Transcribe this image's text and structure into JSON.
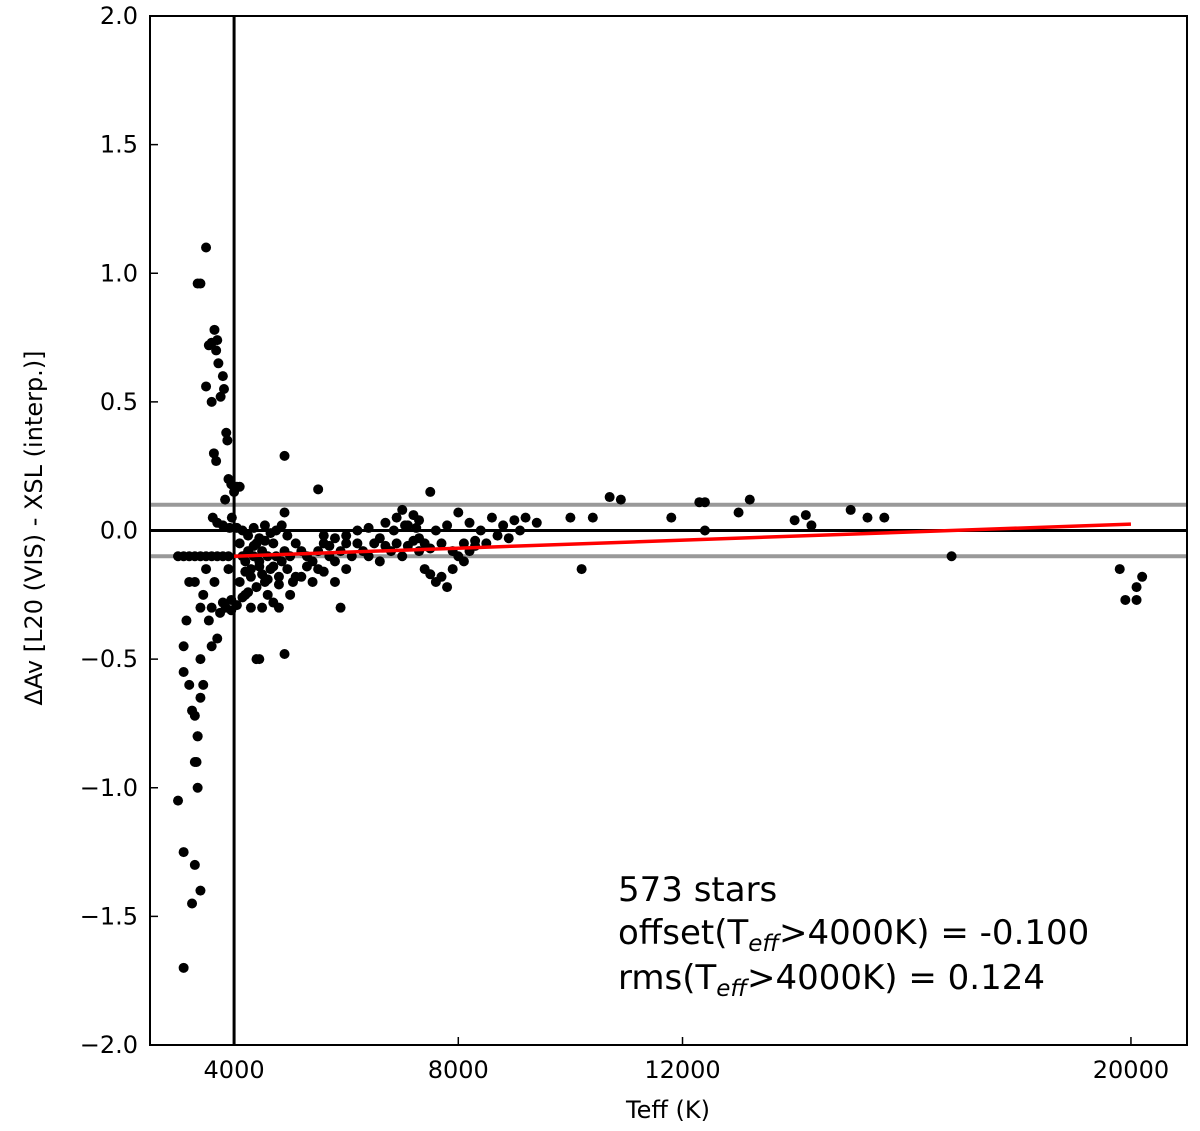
{
  "chart_data": {
    "type": "scatter",
    "xlabel": "Teff (K)",
    "ylabel": "ΔAv [L20 (VIS) - XSL (interp.)]",
    "xlim": [
      2500,
      21000
    ],
    "ylim": [
      -2.0,
      2.0
    ],
    "x_ticks": [
      4000,
      8000,
      12000,
      20000
    ],
    "x_tick_labels": [
      "4000",
      "8000",
      "12000",
      "20000"
    ],
    "y_ticks": [
      2.0,
      1.5,
      1.0,
      0.5,
      0.0,
      -0.5,
      -1.0,
      -1.5,
      -2.0
    ],
    "y_tick_labels": [
      "2.0",
      "1.5",
      "1.0",
      "0.5",
      "0.0",
      "−0.5",
      "−1.0",
      "−1.5",
      "−2.0"
    ],
    "reference_lines": {
      "vertical_x": 4000,
      "zero_y": 0.0,
      "gray_band_y": [
        0.1,
        -0.1
      ]
    },
    "fit_line": {
      "x": [
        4000,
        20000
      ],
      "y": [
        -0.1,
        0.025
      ],
      "color": "#ff0000"
    },
    "annotation": {
      "line1": "573 stars",
      "line2_prefix": "offset(T",
      "line2_sub": "eff",
      "line2_suffix": ">4000K)  = -0.100",
      "line3_prefix": "rms(T",
      "line3_sub": "eff",
      "line3_suffix": ">4000K) = 0.124"
    },
    "colors": {
      "points": "#000000",
      "fit": "#ff0000",
      "band": "#999999",
      "axes": "#000000"
    },
    "points": [
      [
        3500,
        1.1
      ],
      [
        3400,
        0.96
      ],
      [
        3350,
        0.96
      ],
      [
        3650,
        0.78
      ],
      [
        3700,
        0.74
      ],
      [
        3600,
        0.73
      ],
      [
        3550,
        0.72
      ],
      [
        3680,
        0.7
      ],
      [
        3720,
        0.65
      ],
      [
        3800,
        0.6
      ],
      [
        3820,
        0.55
      ],
      [
        3500,
        0.56
      ],
      [
        3760,
        0.52
      ],
      [
        3600,
        0.5
      ],
      [
        3860,
        0.38
      ],
      [
        3880,
        0.35
      ],
      [
        3640,
        0.3
      ],
      [
        3680,
        0.27
      ],
      [
        3900,
        0.2
      ],
      [
        3950,
        0.18
      ],
      [
        4000,
        0.15
      ],
      [
        3840,
        0.12
      ],
      [
        4050,
        0.17
      ],
      [
        4100,
        0.17
      ],
      [
        3960,
        0.05
      ],
      [
        3620,
        0.05
      ],
      [
        3700,
        0.03
      ],
      [
        3800,
        0.02
      ],
      [
        3920,
        0.01
      ],
      [
        4050,
        0.01
      ],
      [
        3000,
        -0.1
      ],
      [
        3100,
        -0.1
      ],
      [
        3200,
        -0.1
      ],
      [
        3300,
        -0.1
      ],
      [
        3400,
        -0.1
      ],
      [
        3500,
        -0.1
      ],
      [
        3600,
        -0.1
      ],
      [
        3700,
        -0.1
      ],
      [
        3800,
        -0.1
      ],
      [
        3900,
        -0.1
      ],
      [
        3200,
        -0.2
      ],
      [
        3300,
        -0.2
      ],
      [
        3400,
        -0.3
      ],
      [
        3450,
        -0.25
      ],
      [
        3500,
        -0.15
      ],
      [
        3550,
        -0.35
      ],
      [
        3600,
        -0.3
      ],
      [
        3650,
        -0.2
      ],
      [
        3700,
        -0.42
      ],
      [
        3750,
        -0.32
      ],
      [
        3800,
        -0.28
      ],
      [
        3850,
        -0.3
      ],
      [
        3900,
        -0.15
      ],
      [
        3950,
        -0.27
      ],
      [
        3100,
        -0.45
      ],
      [
        3100,
        -0.55
      ],
      [
        3200,
        -0.6
      ],
      [
        3250,
        -0.7
      ],
      [
        3300,
        -0.72
      ],
      [
        3350,
        -0.8
      ],
      [
        3400,
        -0.65
      ],
      [
        3450,
        -0.6
      ],
      [
        3330,
        -0.9
      ],
      [
        3350,
        -1.0
      ],
      [
        3000,
        -1.05
      ],
      [
        3100,
        -1.25
      ],
      [
        3300,
        -1.3
      ],
      [
        3400,
        -1.4
      ],
      [
        3250,
        -1.45
      ],
      [
        3100,
        -1.7
      ],
      [
        3300,
        -0.9
      ],
      [
        3350,
        -0.8
      ],
      [
        3600,
        -0.45
      ],
      [
        3400,
        -0.5
      ],
      [
        3150,
        -0.35
      ],
      [
        4100,
        -0.05
      ],
      [
        4150,
        -0.1
      ],
      [
        4200,
        -0.12
      ],
      [
        4250,
        -0.08
      ],
      [
        4300,
        -0.15
      ],
      [
        4350,
        -0.1
      ],
      [
        4400,
        -0.05
      ],
      [
        4450,
        -0.12
      ],
      [
        4500,
        -0.08
      ],
      [
        4550,
        -0.2
      ],
      [
        4600,
        -0.1
      ],
      [
        4650,
        -0.15
      ],
      [
        4700,
        -0.05
      ],
      [
        4750,
        -0.1
      ],
      [
        4800,
        -0.18
      ],
      [
        4850,
        -0.12
      ],
      [
        4900,
        -0.08
      ],
      [
        4950,
        -0.15
      ],
      [
        5000,
        -0.1
      ],
      [
        5050,
        -0.2
      ],
      [
        4100,
        -0.2
      ],
      [
        4200,
        -0.25
      ],
      [
        4300,
        -0.3
      ],
      [
        4400,
        -0.5
      ],
      [
        4450,
        -0.5
      ],
      [
        4500,
        -0.3
      ],
      [
        4600,
        -0.25
      ],
      [
        4700,
        -0.28
      ],
      [
        4800,
        -0.3
      ],
      [
        4900,
        -0.48
      ],
      [
        4150,
        0.0
      ],
      [
        4250,
        -0.02
      ],
      [
        4350,
        0.01
      ],
      [
        4450,
        -0.03
      ],
      [
        4550,
        0.02
      ],
      [
        4650,
        -0.01
      ],
      [
        4750,
        0.0
      ],
      [
        4850,
        0.02
      ],
      [
        4950,
        -0.02
      ],
      [
        4900,
        0.07
      ],
      [
        4900,
        0.29
      ],
      [
        4200,
        -0.16
      ],
      [
        4300,
        -0.18
      ],
      [
        4400,
        -0.22
      ],
      [
        4500,
        -0.17
      ],
      [
        4600,
        -0.19
      ],
      [
        4700,
        -0.14
      ],
      [
        4800,
        -0.21
      ],
      [
        5000,
        -0.25
      ],
      [
        5100,
        -0.18
      ],
      [
        5100,
        -0.05
      ],
      [
        5200,
        -0.08
      ],
      [
        5300,
        -0.1
      ],
      [
        5400,
        -0.12
      ],
      [
        5500,
        -0.15
      ],
      [
        5600,
        -0.05
      ],
      [
        5700,
        -0.1
      ],
      [
        5800,
        -0.12
      ],
      [
        5900,
        -0.08
      ],
      [
        6000,
        -0.15
      ],
      [
        5200,
        -0.18
      ],
      [
        5300,
        -0.14
      ],
      [
        5400,
        -0.2
      ],
      [
        5500,
        -0.08
      ],
      [
        5600,
        -0.16
      ],
      [
        5700,
        -0.06
      ],
      [
        5800,
        -0.2
      ],
      [
        5900,
        -0.3
      ],
      [
        6000,
        -0.05
      ],
      [
        6100,
        -0.1
      ],
      [
        5500,
        0.16
      ],
      [
        5600,
        -0.02
      ],
      [
        5800,
        -0.03
      ],
      [
        6000,
        -0.02
      ],
      [
        6200,
        -0.05
      ],
      [
        6300,
        -0.08
      ],
      [
        6400,
        -0.1
      ],
      [
        6500,
        -0.05
      ],
      [
        6600,
        -0.12
      ],
      [
        6700,
        -0.06
      ],
      [
        6200,
        0.0
      ],
      [
        6400,
        0.01
      ],
      [
        6600,
        -0.03
      ],
      [
        6800,
        -0.08
      ],
      [
        6900,
        -0.05
      ],
      [
        7000,
        -0.1
      ],
      [
        7100,
        -0.06
      ],
      [
        7200,
        -0.04
      ],
      [
        7300,
        -0.08
      ],
      [
        7400,
        -0.05
      ],
      [
        6700,
        0.03
      ],
      [
        6900,
        0.05
      ],
      [
        7100,
        0.02
      ],
      [
        7300,
        0.04
      ],
      [
        7500,
        0.15
      ],
      [
        7000,
        0.08
      ],
      [
        7200,
        0.06
      ],
      [
        6850,
        0.0
      ],
      [
        7050,
        0.02
      ],
      [
        7250,
        0.01
      ],
      [
        7400,
        -0.15
      ],
      [
        7500,
        -0.17
      ],
      [
        7600,
        -0.2
      ],
      [
        7700,
        -0.18
      ],
      [
        7800,
        -0.22
      ],
      [
        7900,
        -0.15
      ],
      [
        8000,
        -0.1
      ],
      [
        8100,
        -0.12
      ],
      [
        8200,
        -0.08
      ],
      [
        8300,
        -0.06
      ],
      [
        7600,
        0.0
      ],
      [
        7800,
        0.02
      ],
      [
        8000,
        0.07
      ],
      [
        8200,
        0.03
      ],
      [
        8400,
        0.0
      ],
      [
        8600,
        0.05
      ],
      [
        8800,
        0.02
      ],
      [
        9000,
        0.04
      ],
      [
        9200,
        0.05
      ],
      [
        9400,
        0.03
      ],
      [
        8500,
        -0.05
      ],
      [
        8700,
        -0.02
      ],
      [
        8900,
        -0.03
      ],
      [
        9100,
        0.0
      ],
      [
        7700,
        -0.05
      ],
      [
        7900,
        -0.08
      ],
      [
        8100,
        -0.05
      ],
      [
        8300,
        -0.04
      ],
      [
        7500,
        -0.07
      ],
      [
        7300,
        -0.03
      ],
      [
        10000,
        0.05
      ],
      [
        10400,
        0.05
      ],
      [
        10700,
        0.13
      ],
      [
        10900,
        0.12
      ],
      [
        10200,
        -0.15
      ],
      [
        11800,
        0.05
      ],
      [
        12300,
        0.11
      ],
      [
        12400,
        0.11
      ],
      [
        12400,
        0.0
      ],
      [
        13000,
        0.07
      ],
      [
        13200,
        0.12
      ],
      [
        14000,
        0.04
      ],
      [
        14200,
        0.06
      ],
      [
        14300,
        0.02
      ],
      [
        15000,
        0.08
      ],
      [
        15300,
        0.05
      ],
      [
        15600,
        0.05
      ],
      [
        16800,
        -0.1
      ],
      [
        19800,
        -0.15
      ],
      [
        19900,
        -0.27
      ],
      [
        20100,
        -0.22
      ],
      [
        20200,
        -0.18
      ],
      [
        20100,
        -0.27
      ],
      [
        3950,
        -0.31
      ],
      [
        4050,
        -0.29
      ],
      [
        4150,
        -0.26
      ],
      [
        4250,
        -0.24
      ],
      [
        4350,
        -0.06
      ],
      [
        4450,
        -0.14
      ],
      [
        4550,
        -0.04
      ]
    ]
  }
}
